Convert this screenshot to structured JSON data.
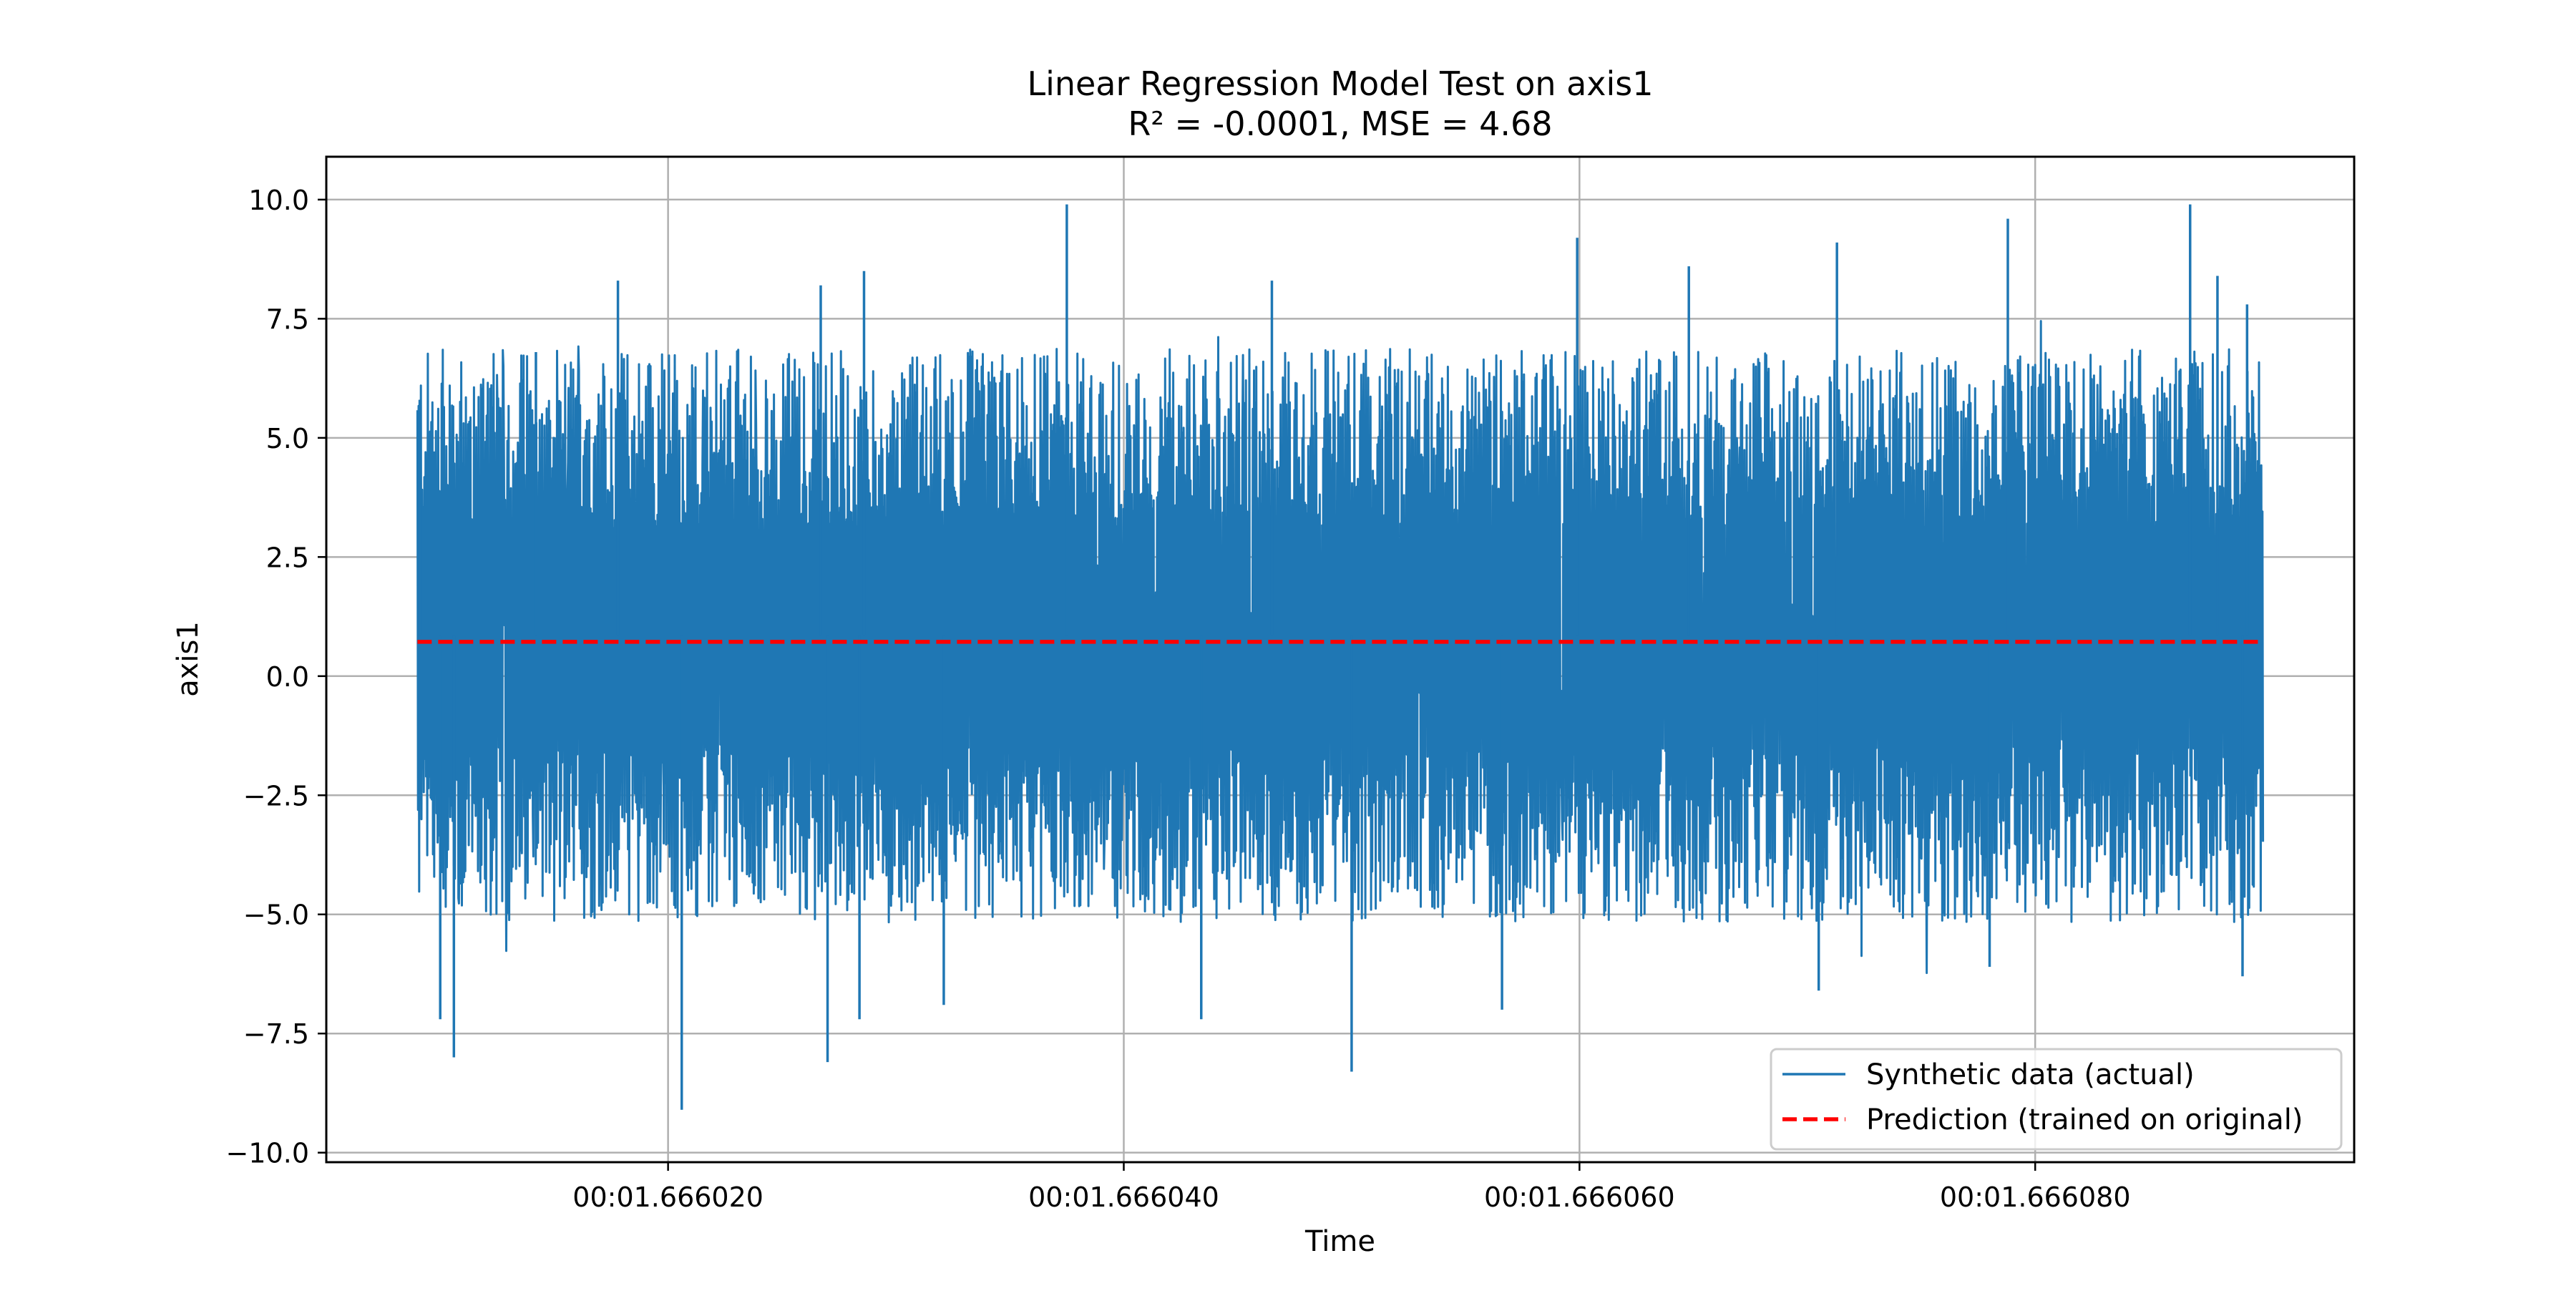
{
  "chart_data": {
    "type": "line",
    "title": "Linear Regression Model Test on axis1",
    "subtitle": "R² = -0.0001, MSE = 4.68",
    "xlabel": "Time",
    "ylabel": "axis1",
    "x_tick_labels": [
      "00:01.666020",
      "00:01.666040",
      "00:01.666060",
      "00:01.666080"
    ],
    "x_tick_values": [
      20,
      40,
      60,
      80
    ],
    "x_tick_unit": "microseconds after 00:01.666000",
    "xlim": [
      5,
      94
    ],
    "ylim": [
      -10.2,
      10.9
    ],
    "y_ticks": [
      10.0,
      7.5,
      5.0,
      2.5,
      0.0,
      -2.5,
      -5.0,
      -7.5,
      -10.0
    ],
    "y_tick_labels": [
      "10.0",
      "7.5",
      "5.0",
      "2.5",
      "0.0",
      "−2.5",
      "−5.0",
      "−7.5",
      "−10.0"
    ],
    "grid": true,
    "legend_position": "bottom-right",
    "series": [
      {
        "name": "Synthetic data (actual)",
        "style": "solid",
        "color": "#1f77b4",
        "x_range": [
          9.0,
          90.0
        ],
        "typical_band": [
          -3.3,
          5.0
        ],
        "mean": 0.7,
        "max": 9.9,
        "min": -9.1,
        "peaks": [
          {
            "x": 9.1,
            "y": 5.8
          },
          {
            "x": 14.2,
            "y": 6.8
          },
          {
            "x": 17.8,
            "y": 8.3
          },
          {
            "x": 26.7,
            "y": 8.2
          },
          {
            "x": 28.6,
            "y": 8.5
          },
          {
            "x": 37.5,
            "y": 9.9
          },
          {
            "x": 46.5,
            "y": 8.3
          },
          {
            "x": 59.9,
            "y": 9.2
          },
          {
            "x": 64.8,
            "y": 8.6
          },
          {
            "x": 71.3,
            "y": 9.1
          },
          {
            "x": 78.8,
            "y": 9.6
          },
          {
            "x": 86.8,
            "y": 9.9
          },
          {
            "x": 88.0,
            "y": 8.4
          },
          {
            "x": 89.3,
            "y": 7.8
          }
        ],
        "troughs": [
          {
            "x": 10.0,
            "y": -7.2
          },
          {
            "x": 10.6,
            "y": -8.0
          },
          {
            "x": 20.6,
            "y": -9.1
          },
          {
            "x": 27.0,
            "y": -8.1
          },
          {
            "x": 28.4,
            "y": -7.2
          },
          {
            "x": 32.1,
            "y": -6.9
          },
          {
            "x": 43.4,
            "y": -7.2
          },
          {
            "x": 50.0,
            "y": -8.3
          },
          {
            "x": 56.6,
            "y": -7.0
          },
          {
            "x": 70.5,
            "y": -6.6
          },
          {
            "x": 78.0,
            "y": -6.1
          },
          {
            "x": 89.1,
            "y": -6.3
          }
        ]
      },
      {
        "name": "Prediction (trained on original)",
        "style": "dashed",
        "color": "#ff0000",
        "x_range": [
          9.0,
          90.0
        ],
        "value": 0.72
      }
    ]
  }
}
